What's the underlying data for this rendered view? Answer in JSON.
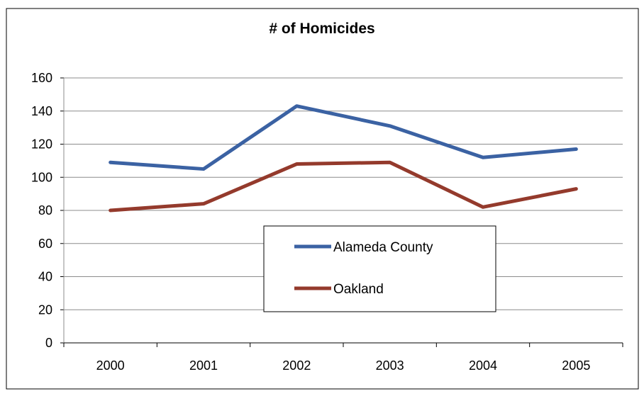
{
  "chart_data": {
    "type": "line",
    "title": "# of Homicides",
    "xlabel": "",
    "ylabel": "",
    "categories": [
      "2000",
      "2001",
      "2002",
      "2003",
      "2004",
      "2005"
    ],
    "ylim": [
      0,
      160
    ],
    "yticks": [
      "0",
      "20",
      "40",
      "60",
      "80",
      "100",
      "120",
      "140",
      "160"
    ],
    "grid": true,
    "legend_position": "center",
    "series": [
      {
        "name": "Alameda County",
        "color": "#3B62A3",
        "values": [
          109,
          105,
          143,
          131,
          112,
          117
        ]
      },
      {
        "name": "Oakland",
        "color": "#943A2C",
        "values": [
          80,
          84,
          108,
          109,
          82,
          93
        ]
      }
    ]
  }
}
